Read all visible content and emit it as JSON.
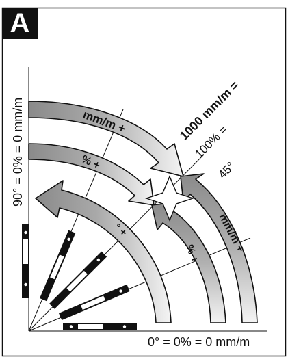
{
  "panel": {
    "label": "A"
  },
  "labels": {
    "vertical_axis": "90° = 0% = 0 mm/m",
    "horizontal_axis": "0° = 0% = 0 mm/m",
    "diag_1000": "1000 mm/m =",
    "diag_100": "100% =",
    "diag_45": "45°"
  },
  "arrows": {
    "top_outer": "mm/m +",
    "top_middle": "% +",
    "top_inner": "° +",
    "right_middle": "% +",
    "right_outer": "mm/m +"
  },
  "colors": {
    "ink": "#111111",
    "arrow_fill_dark": "#8a8a8a",
    "arrow_fill_light": "#f2f2f2"
  }
}
